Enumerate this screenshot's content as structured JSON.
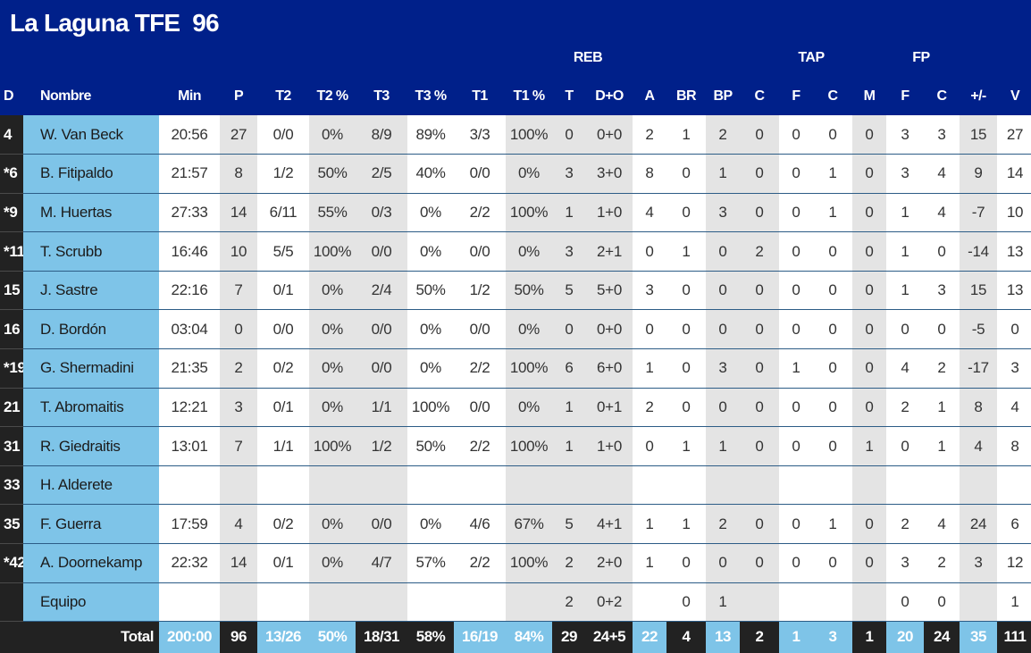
{
  "team": {
    "name": "La Laguna TFE",
    "score": "96"
  },
  "groups": {
    "reb": "REB",
    "tap": "TAP",
    "fp": "FP"
  },
  "headers": [
    "D",
    "Nombre",
    "Min",
    "P",
    "T2",
    "T2 %",
    "T3",
    "T3 %",
    "T1",
    "T1 %",
    "T",
    "D+O",
    "A",
    "BR",
    "BP",
    "C",
    "F",
    "C",
    "M",
    "F",
    "C",
    "+/-",
    "V"
  ],
  "players": [
    [
      "4",
      "W. Van Beck",
      "20:56",
      "27",
      "0/0",
      "0%",
      "8/9",
      "89%",
      "3/3",
      "100%",
      "0",
      "0+0",
      "2",
      "1",
      "2",
      "0",
      "0",
      "0",
      "0",
      "3",
      "3",
      "15",
      "27"
    ],
    [
      "*6",
      "B. Fitipaldo",
      "21:57",
      "8",
      "1/2",
      "50%",
      "2/5",
      "40%",
      "0/0",
      "0%",
      "3",
      "3+0",
      "8",
      "0",
      "1",
      "0",
      "0",
      "1",
      "0",
      "3",
      "4",
      "9",
      "14"
    ],
    [
      "*9",
      "M. Huertas",
      "27:33",
      "14",
      "6/11",
      "55%",
      "0/3",
      "0%",
      "2/2",
      "100%",
      "1",
      "1+0",
      "4",
      "0",
      "3",
      "0",
      "0",
      "1",
      "0",
      "1",
      "4",
      "-7",
      "10"
    ],
    [
      "*11",
      "T. Scrubb",
      "16:46",
      "10",
      "5/5",
      "100%",
      "0/0",
      "0%",
      "0/0",
      "0%",
      "3",
      "2+1",
      "0",
      "1",
      "0",
      "2",
      "0",
      "0",
      "0",
      "1",
      "0",
      "-14",
      "13"
    ],
    [
      "15",
      "J. Sastre",
      "22:16",
      "7",
      "0/1",
      "0%",
      "2/4",
      "50%",
      "1/2",
      "50%",
      "5",
      "5+0",
      "3",
      "0",
      "0",
      "0",
      "0",
      "0",
      "0",
      "1",
      "3",
      "15",
      "13"
    ],
    [
      "16",
      "D. Bordón",
      "03:04",
      "0",
      "0/0",
      "0%",
      "0/0",
      "0%",
      "0/0",
      "0%",
      "0",
      "0+0",
      "0",
      "0",
      "0",
      "0",
      "0",
      "0",
      "0",
      "0",
      "0",
      "-5",
      "0"
    ],
    [
      "*19",
      "G. Shermadini",
      "21:35",
      "2",
      "0/2",
      "0%",
      "0/0",
      "0%",
      "2/2",
      "100%",
      "6",
      "6+0",
      "1",
      "0",
      "3",
      "0",
      "1",
      "0",
      "0",
      "4",
      "2",
      "-17",
      "3"
    ],
    [
      "21",
      "T. Abromaitis",
      "12:21",
      "3",
      "0/1",
      "0%",
      "1/1",
      "100%",
      "0/0",
      "0%",
      "1",
      "0+1",
      "2",
      "0",
      "0",
      "0",
      "0",
      "0",
      "0",
      "2",
      "1",
      "8",
      "4"
    ],
    [
      "31",
      "R. Giedraitis",
      "13:01",
      "7",
      "1/1",
      "100%",
      "1/2",
      "50%",
      "2/2",
      "100%",
      "1",
      "1+0",
      "0",
      "1",
      "1",
      "0",
      "0",
      "0",
      "1",
      "0",
      "1",
      "4",
      "8"
    ],
    [
      "33",
      "H. Alderete",
      "",
      "",
      "",
      "",
      "",
      "",
      "",
      "",
      "",
      "",
      "",
      "",
      "",
      "",
      "",
      "",
      "",
      "",
      "",
      "",
      ""
    ],
    [
      "35",
      "F. Guerra",
      "17:59",
      "4",
      "0/2",
      "0%",
      "0/0",
      "0%",
      "4/6",
      "67%",
      "5",
      "4+1",
      "1",
      "1",
      "2",
      "0",
      "0",
      "1",
      "0",
      "2",
      "4",
      "24",
      "6"
    ],
    [
      "*42",
      "A. Doornekamp",
      "22:32",
      "14",
      "0/1",
      "0%",
      "4/7",
      "57%",
      "2/2",
      "100%",
      "2",
      "2+0",
      "1",
      "0",
      "0",
      "0",
      "0",
      "0",
      "0",
      "3",
      "2",
      "3",
      "12"
    ],
    [
      "",
      "Equipo",
      "",
      "",
      "",
      "",
      "",
      "",
      "",
      "",
      "2",
      "0+2",
      "",
      "0",
      "1",
      "",
      "",
      "",
      "",
      "0",
      "0",
      "",
      "1"
    ]
  ],
  "totals": [
    "Total",
    "200:00",
    "96",
    "13/26",
    "50%",
    "18/31",
    "58%",
    "16/19",
    "84%",
    "29",
    "24+5",
    "22",
    "4",
    "13",
    "2",
    "1",
    "3",
    "1",
    "20",
    "24",
    "35",
    "111"
  ]
}
